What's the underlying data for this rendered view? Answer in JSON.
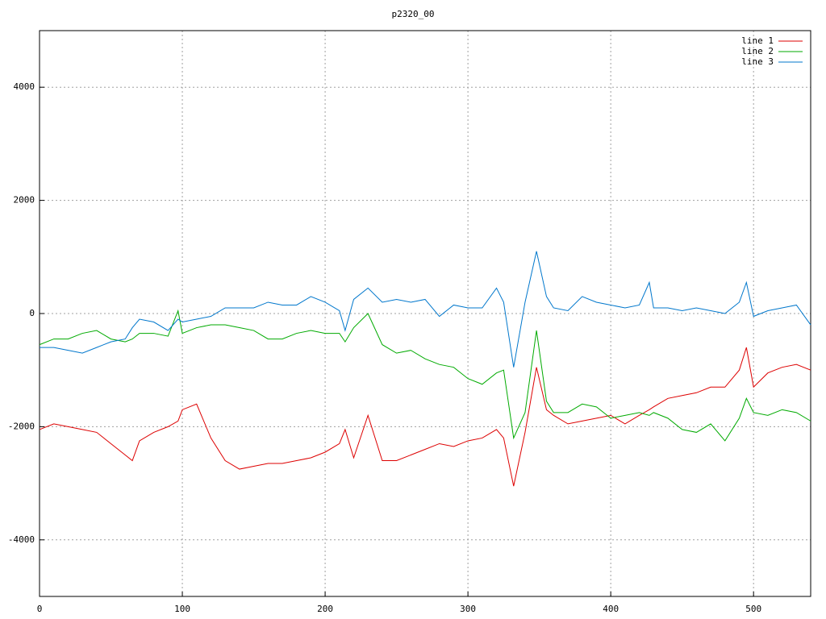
{
  "chart_data": {
    "type": "line",
    "title": "p2320_00",
    "x": [
      0,
      10,
      20,
      30,
      40,
      50,
      60,
      65,
      70,
      80,
      90,
      97,
      100,
      110,
      120,
      130,
      140,
      150,
      160,
      170,
      180,
      190,
      200,
      210,
      214,
      220,
      230,
      240,
      250,
      260,
      270,
      280,
      290,
      300,
      310,
      320,
      325,
      332,
      340,
      348,
      355,
      360,
      370,
      380,
      390,
      400,
      410,
      420,
      427,
      430,
      440,
      450,
      460,
      470,
      480,
      490,
      495,
      500,
      510,
      520,
      530,
      540
    ],
    "series": [
      {
        "name": "line 1",
        "color": "#dd0000",
        "values": [
          -2050,
          -1950,
          -2000,
          -2050,
          -2100,
          -2300,
          -2500,
          -2600,
          -2250,
          -2100,
          -2000,
          -1900,
          -1700,
          -1600,
          -2200,
          -2600,
          -2750,
          -2700,
          -2650,
          -2650,
          -2600,
          -2550,
          -2450,
          -2300,
          -2050,
          -2550,
          -1800,
          -2600,
          -2600,
          -2500,
          -2400,
          -2300,
          -2350,
          -2250,
          -2200,
          -2050,
          -2200,
          -3050,
          -2100,
          -950,
          -1700,
          -1800,
          -1950,
          -1900,
          -1850,
          -1800,
          -1950,
          -1800,
          -1700,
          -1650,
          -1500,
          -1450,
          -1400,
          -1300,
          -1300,
          -1000,
          -600,
          -1300,
          -1050,
          -950,
          -900,
          -1000
        ]
      },
      {
        "name": "line 2",
        "color": "#00aa00",
        "values": [
          -550,
          -450,
          -450,
          -350,
          -300,
          -450,
          -500,
          -450,
          -350,
          -350,
          -400,
          50,
          -350,
          -250,
          -200,
          -200,
          -250,
          -300,
          -450,
          -450,
          -350,
          -300,
          -350,
          -350,
          -500,
          -250,
          0,
          -550,
          -700,
          -650,
          -800,
          -900,
          -950,
          -1150,
          -1250,
          -1050,
          -1000,
          -2200,
          -1750,
          -300,
          -1550,
          -1750,
          -1750,
          -1600,
          -1650,
          -1850,
          -1800,
          -1750,
          -1800,
          -1750,
          -1850,
          -2050,
          -2100,
          -1950,
          -2250,
          -1850,
          -1500,
          -1750,
          -1800,
          -1700,
          -1750,
          -1900
        ]
      },
      {
        "name": "line 3",
        "color": "#0077cc",
        "values": [
          -600,
          -600,
          -650,
          -700,
          -600,
          -500,
          -450,
          -250,
          -100,
          -150,
          -300,
          -100,
          -150,
          -100,
          -50,
          100,
          100,
          100,
          200,
          150,
          150,
          300,
          200,
          50,
          -300,
          250,
          450,
          200,
          250,
          200,
          250,
          -50,
          150,
          100,
          100,
          450,
          200,
          -950,
          200,
          1100,
          300,
          100,
          50,
          300,
          200,
          150,
          100,
          150,
          550,
          100,
          100,
          50,
          100,
          50,
          0,
          200,
          550,
          -50,
          50,
          100,
          150,
          -200
        ]
      }
    ],
    "xlim": [
      0,
      540
    ],
    "ylim": [
      -5000,
      5000
    ],
    "xticks": [
      0,
      100,
      200,
      300,
      400,
      500
    ],
    "yticks": [
      -4000,
      -2000,
      0,
      2000,
      4000
    ],
    "grid": true,
    "legend": "top-right"
  }
}
